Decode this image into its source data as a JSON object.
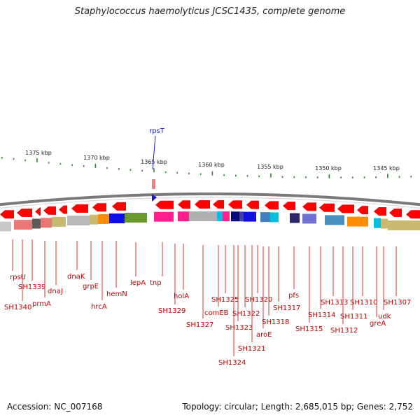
{
  "title": "Staphylococcus haemolyticus JCSC1435, complete genome",
  "footer": {
    "accession": "Accession: NC_007168",
    "summary": "Topology: circular; Length: 2,685,015 bp; Genes: 2,752"
  },
  "marker": {
    "label": "rpsT",
    "color": "#1a1ad6"
  },
  "kbp_ticks": [
    "1375 kbp",
    "1370 kbp",
    "1365 kbp",
    "1360 kbp",
    "1355 kbp",
    "1350 kbp",
    "1345 kbp"
  ],
  "colors": {
    "arrow": "#ff0000",
    "leader": "#e03030",
    "label": "#c00000",
    "tick": "#2a8a2a",
    "backbone": "#7a7a7a"
  },
  "gene_labels": [
    "rpsU",
    "SH1340",
    "SH1339",
    "prmA",
    "dnaJ",
    "dnaK",
    "grpE",
    "hrcA",
    "hemN",
    "lepA",
    "tnp",
    "SH1329",
    "holA",
    "SH1327",
    "comEB",
    "SH1325",
    "SH1323",
    "SH1324",
    "SH1322",
    "SH1321",
    "SH1320",
    "aroE",
    "SH1318",
    "SH1317",
    "pfs",
    "SH1315",
    "SH1314",
    "SH1313",
    "SH1312",
    "SH1311",
    "SH1310",
    "greA",
    "udk",
    "SH1307"
  ],
  "func_colors": [
    "#c8c8c8",
    "#e87878",
    "#5a5a5a",
    "#e87878",
    "#c8b870",
    "#b8b8b8",
    "#c8b870",
    "#ff8c00",
    "#1010e0",
    "#6a9a2a",
    "#ff2090",
    "#ff2090",
    "#b0b0b0",
    "#00c0e0",
    "#ff2090",
    "#0a0a7a",
    "#4040a0",
    "#1010e0",
    "#4080c0",
    "#00c0e0",
    "#2a2a6a",
    "#7070d0",
    "#4a90c0",
    "#ff8c00",
    "#00c0e0",
    "#c8b870",
    "#c8b870"
  ]
}
